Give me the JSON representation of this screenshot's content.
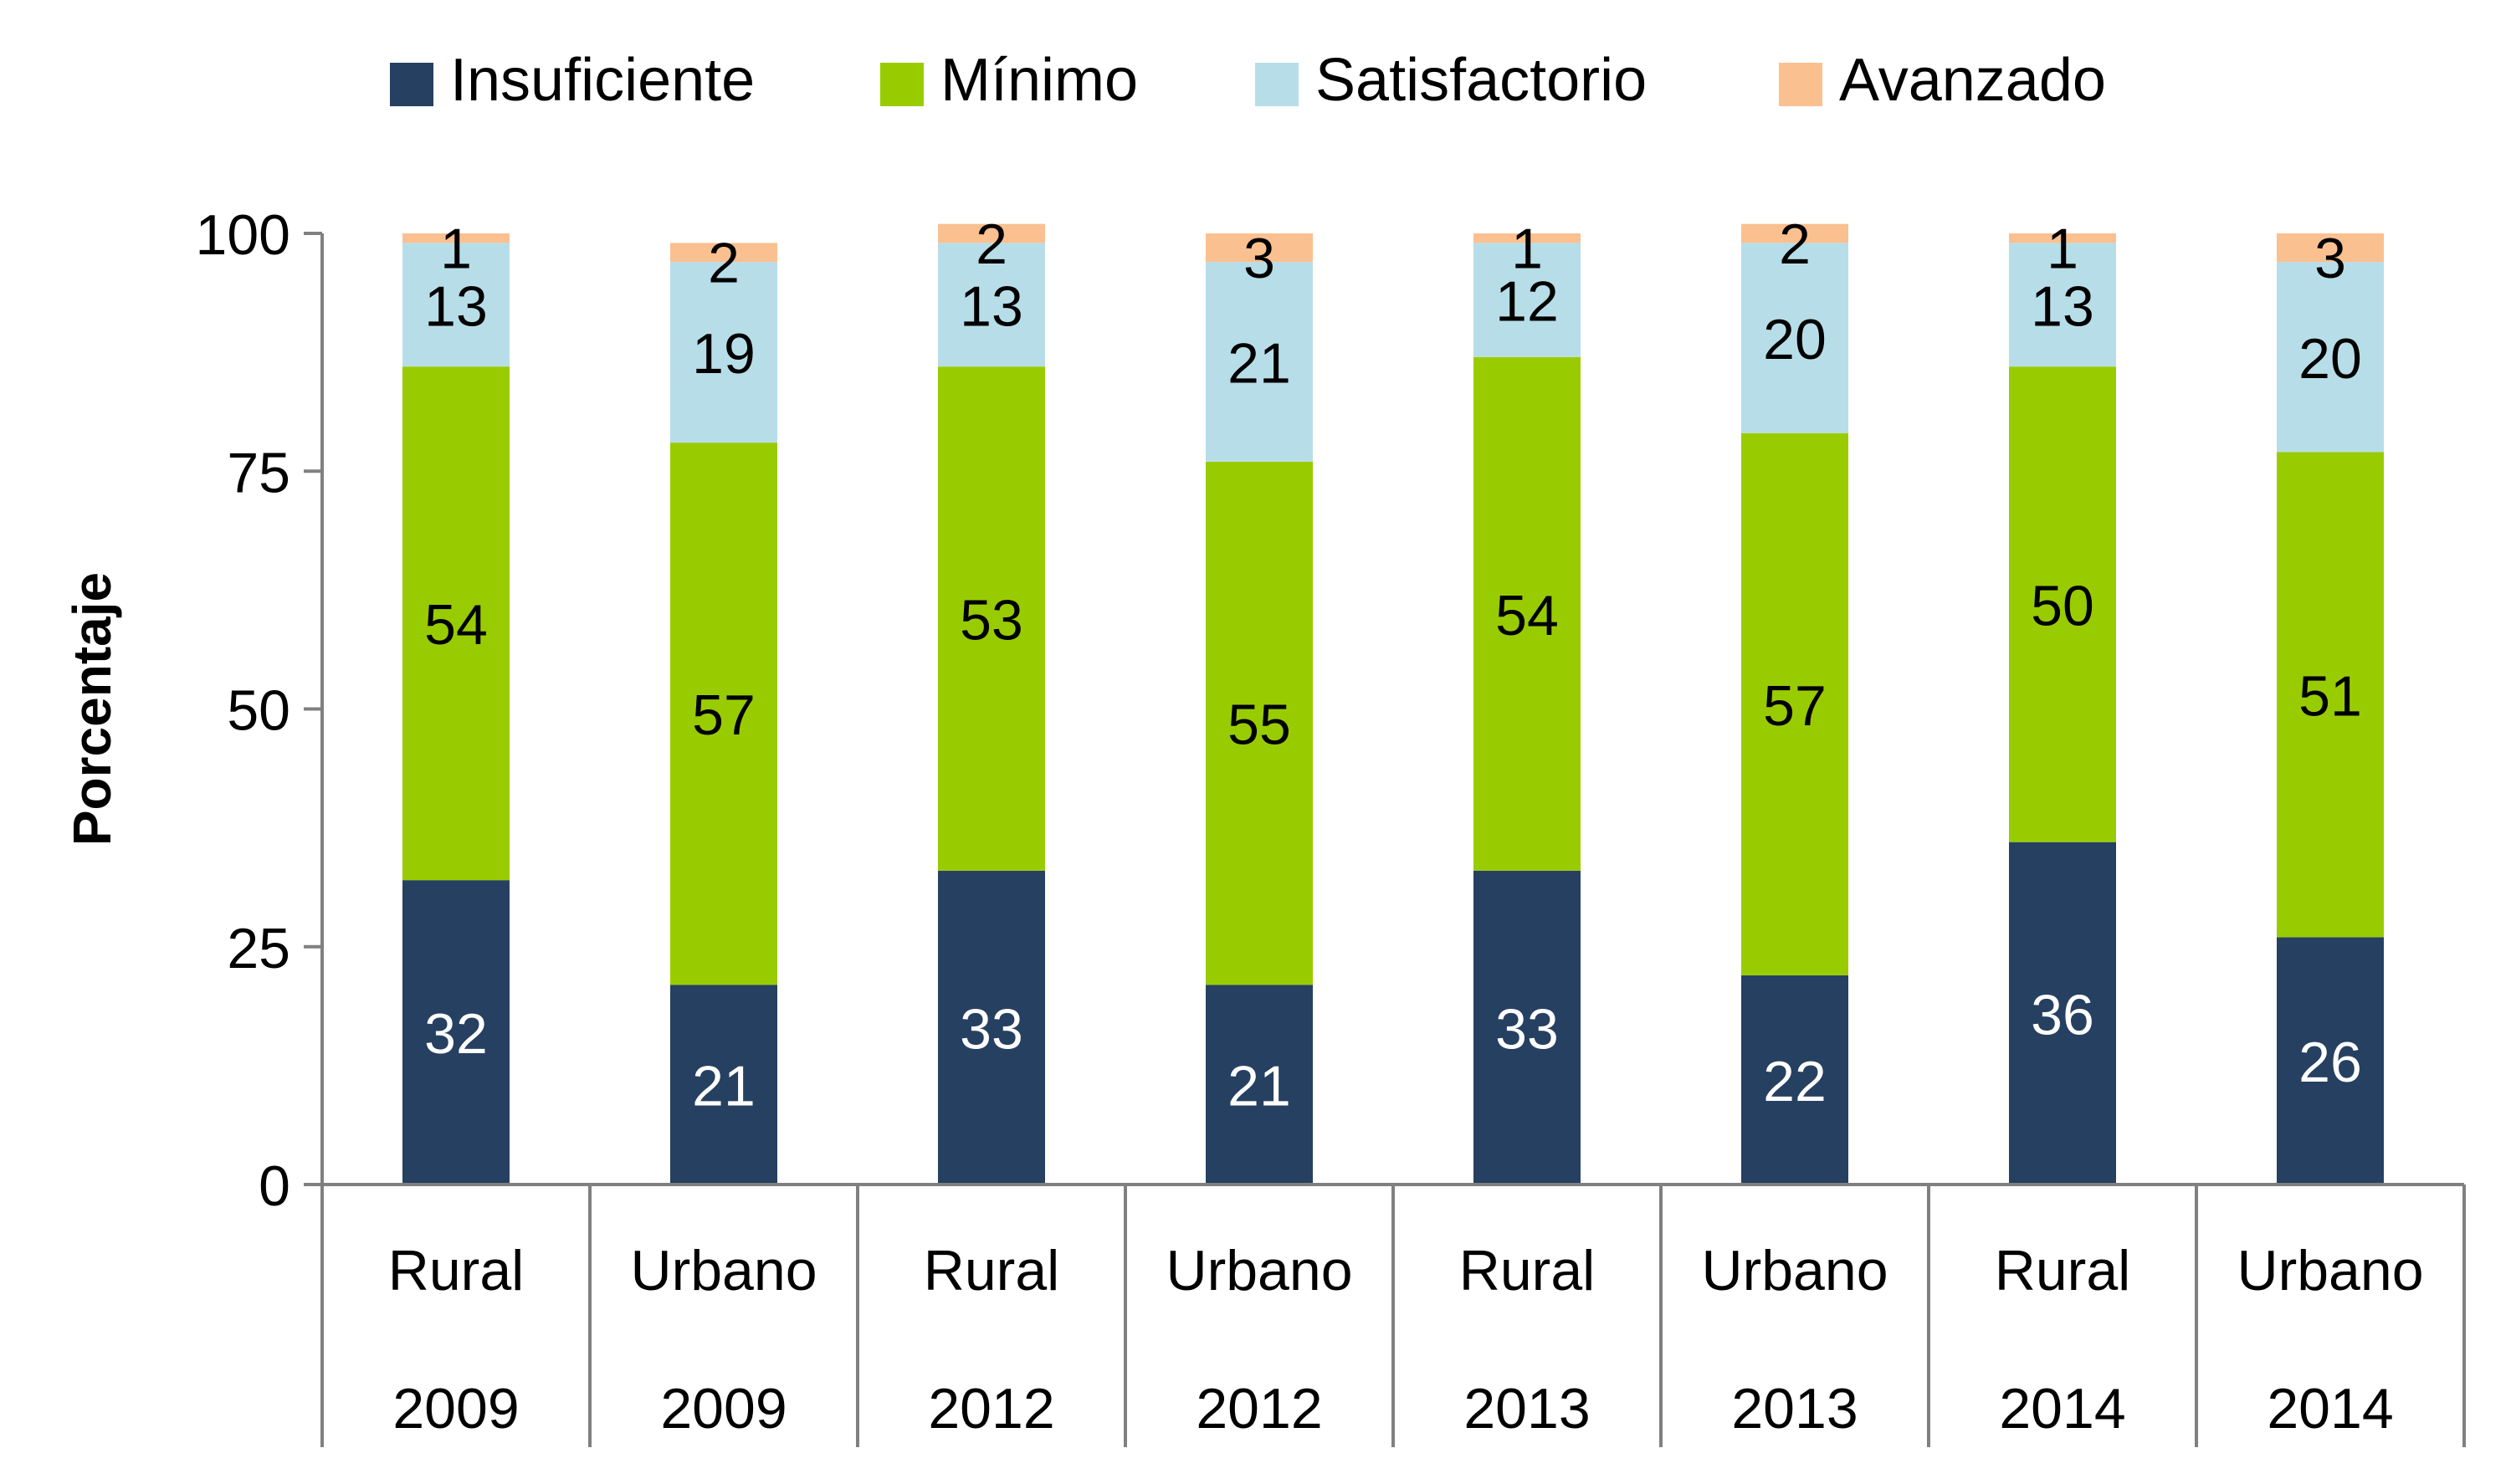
{
  "chart_data": {
    "type": "bar",
    "stacked": true,
    "ylabel": "Porcentaje",
    "ylim": [
      0,
      100
    ],
    "yticks": [
      "0",
      "25",
      "50",
      "75",
      "100"
    ],
    "legend_position": "top",
    "categories": [
      {
        "area": "Rural",
        "year": "2009"
      },
      {
        "area": "Urbano",
        "year": "2009"
      },
      {
        "area": "Rural",
        "year": "2012"
      },
      {
        "area": "Urbano",
        "year": "2012"
      },
      {
        "area": "Rural",
        "year": "2013"
      },
      {
        "area": "Urbano",
        "year": "2013"
      },
      {
        "area": "Rural",
        "year": "2014"
      },
      {
        "area": "Urbano",
        "year": "2014"
      }
    ],
    "series": [
      {
        "name": "Insuficiente",
        "color": "#264061",
        "label_color": "#ffffff",
        "values": [
          32,
          21,
          33,
          21,
          33,
          22,
          36,
          26
        ]
      },
      {
        "name": "Mínimo",
        "color": "#99cc00",
        "label_color": "#000000",
        "values": [
          54,
          57,
          53,
          55,
          54,
          57,
          50,
          51
        ]
      },
      {
        "name": "Satisfactorio",
        "color": "#b7dee8",
        "label_color": "#000000",
        "values": [
          13,
          19,
          13,
          21,
          12,
          20,
          13,
          20
        ]
      },
      {
        "name": "Avanzado",
        "color": "#fac090",
        "label_color": "#000000",
        "values": [
          1,
          2,
          2,
          3,
          1,
          2,
          1,
          3
        ]
      }
    ]
  }
}
